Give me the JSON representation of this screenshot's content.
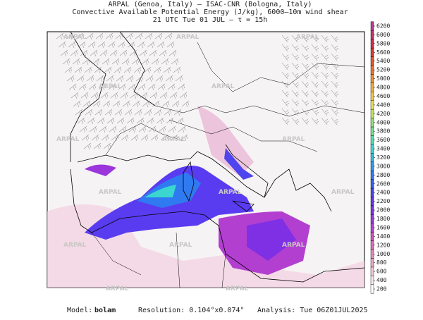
{
  "header": {
    "line1": "ARPAL (Genoa, Italy)  –  ISAC-CNR (Bologna, Italy)",
    "line2": "Convective Available Potential Energy (J/kg), 6000–10m wind shear",
    "line3": "21 UTC Tue 01 JUL  –  τ = 15h"
  },
  "watermark": "ARPAL",
  "colorbar": {
    "ylim": [
      200,
      6200
    ],
    "ticks": [
      200,
      400,
      600,
      800,
      1000,
      1200,
      1400,
      1600,
      1800,
      2000,
      2200,
      2400,
      2600,
      2800,
      3000,
      3200,
      3400,
      3600,
      3800,
      4000,
      4200,
      4400,
      4600,
      4800,
      5000,
      5200,
      5400,
      5600,
      5800,
      6000,
      6200
    ],
    "colors": [
      "#ffffff",
      "#f7e4ec",
      "#f0c6d8",
      "#eaa6c6",
      "#e389bb",
      "#dc6cb4",
      "#cf52bf",
      "#b63fd1",
      "#9b35dc",
      "#8030e4",
      "#6a33ea",
      "#4f45ee",
      "#3a5cf2",
      "#2f7af0",
      "#2c9aea",
      "#2fbfe2",
      "#3ad6cf",
      "#53dcb0",
      "#6fdf8f",
      "#8ee070",
      "#c4e35c",
      "#e8df4f",
      "#f3c641",
      "#f4aa38",
      "#f18d31",
      "#ec6f2c",
      "#e55229",
      "#dc3a2f",
      "#d22e45",
      "#c9306a",
      "#c23691"
    ]
  },
  "footer": {
    "model_label": "Model:",
    "model": "bolam",
    "resolution": "Resolution: 0.104°x0.074°",
    "analysis": "Analysis: Tue 06Z01JUL2025"
  }
}
